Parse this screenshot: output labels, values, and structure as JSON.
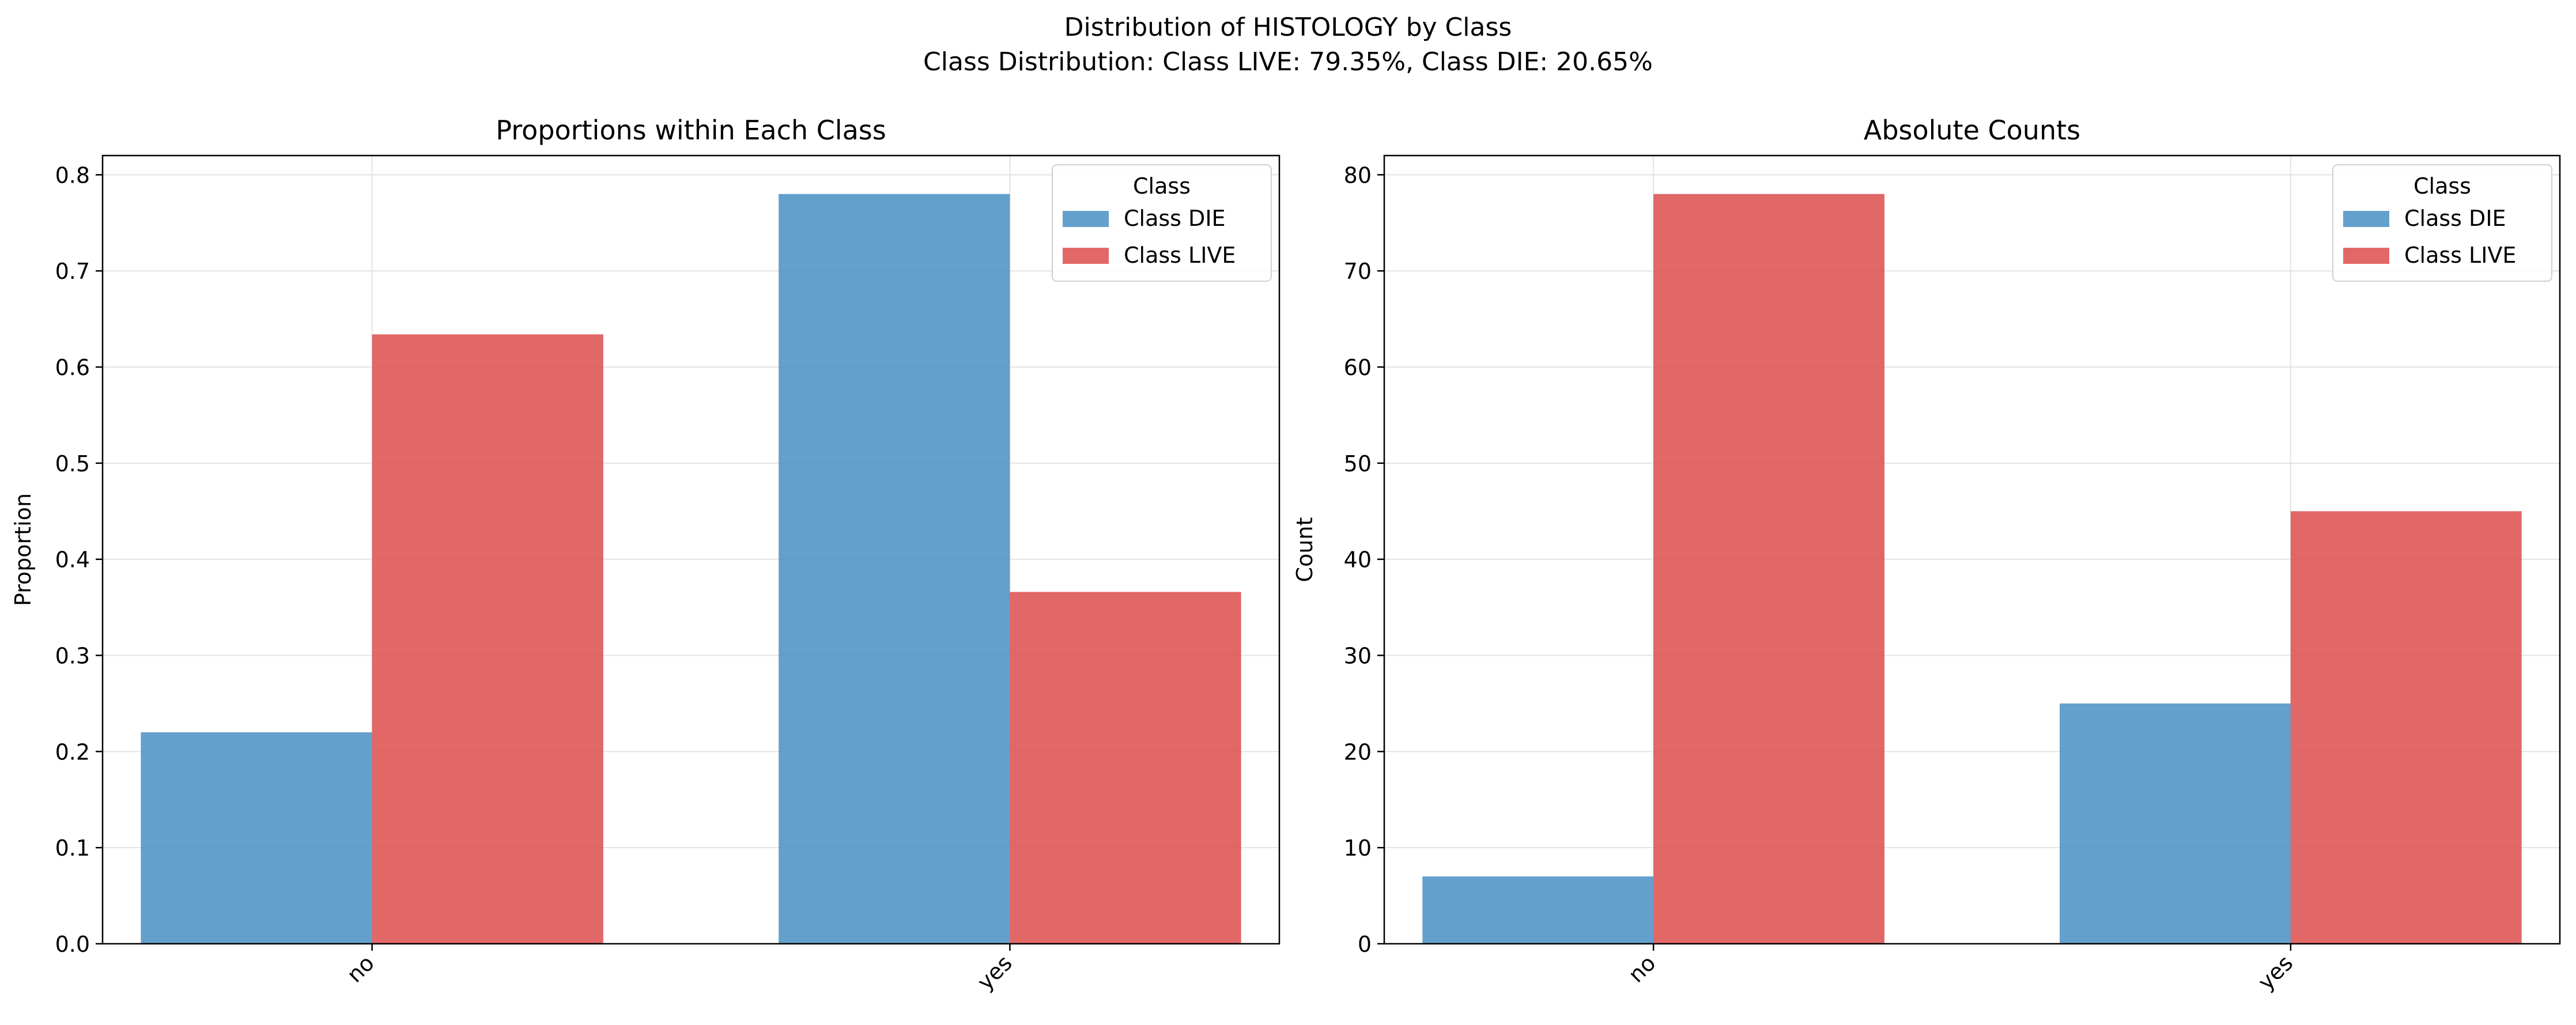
{
  "suptitle": "Distribution of HISTOLOGY by Class",
  "subtitle": "Class Distribution: Class LIVE: 79.35%, Class DIE: 20.65%",
  "colors": {
    "Class DIE": "#4a90c4",
    "Class LIVE": "#dd4e4e"
  },
  "chart_data": [
    {
      "type": "bar",
      "title": "Proportions within Each Class",
      "xlabel": "",
      "ylabel": "Proportion",
      "categories": [
        "no",
        "yes"
      ],
      "series": [
        {
          "name": "Class DIE",
          "values": [
            0.22,
            0.78
          ]
        },
        {
          "name": "Class LIVE",
          "values": [
            0.634,
            0.366
          ]
        }
      ],
      "ylim": [
        0,
        0.82
      ],
      "yticks": [
        0.0,
        0.1,
        0.2,
        0.3,
        0.4,
        0.5,
        0.6,
        0.7,
        0.8
      ],
      "ytick_labels": [
        "0.0",
        "0.1",
        "0.2",
        "0.3",
        "0.4",
        "0.5",
        "0.6",
        "0.7",
        "0.8"
      ],
      "grid": true,
      "legend": {
        "title": "Class",
        "placement": "top-right"
      }
    },
    {
      "type": "bar",
      "title": "Absolute Counts",
      "xlabel": "",
      "ylabel": "Count",
      "categories": [
        "no",
        "yes"
      ],
      "series": [
        {
          "name": "Class DIE",
          "values": [
            7,
            25
          ]
        },
        {
          "name": "Class LIVE",
          "values": [
            78,
            45
          ]
        }
      ],
      "ylim": [
        0,
        82
      ],
      "yticks": [
        0,
        10,
        20,
        30,
        40,
        50,
        60,
        70,
        80
      ],
      "ytick_labels": [
        "0",
        "10",
        "20",
        "30",
        "40",
        "50",
        "60",
        "70",
        "80"
      ],
      "grid": true,
      "legend": {
        "title": "Class",
        "placement": "top-right"
      }
    }
  ]
}
